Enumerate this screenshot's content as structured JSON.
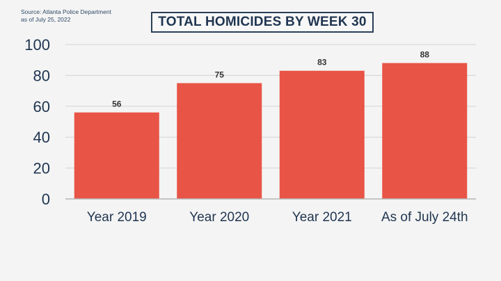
{
  "source": {
    "line1": "Source: Atlanta Police Department",
    "line2": "as of July 25, 2022"
  },
  "colors": {
    "bar": "#e85446",
    "axis_text": "#1f3550",
    "grid": "#d3d3d3",
    "data_label": "#333333"
  },
  "chart_data": {
    "type": "bar",
    "title": "TOTAL HOMICIDES BY WEEK 30",
    "categories": [
      "Year 2019",
      "Year 2020",
      "Year 2021",
      "As of July 24th"
    ],
    "values": [
      56,
      75,
      83,
      88
    ],
    "data_labels": [
      "56",
      "75",
      "83",
      "88"
    ],
    "ylim": [
      0,
      100
    ],
    "yticks": [
      0,
      20,
      40,
      60,
      80,
      100
    ],
    "grid": true,
    "legend": "none"
  }
}
